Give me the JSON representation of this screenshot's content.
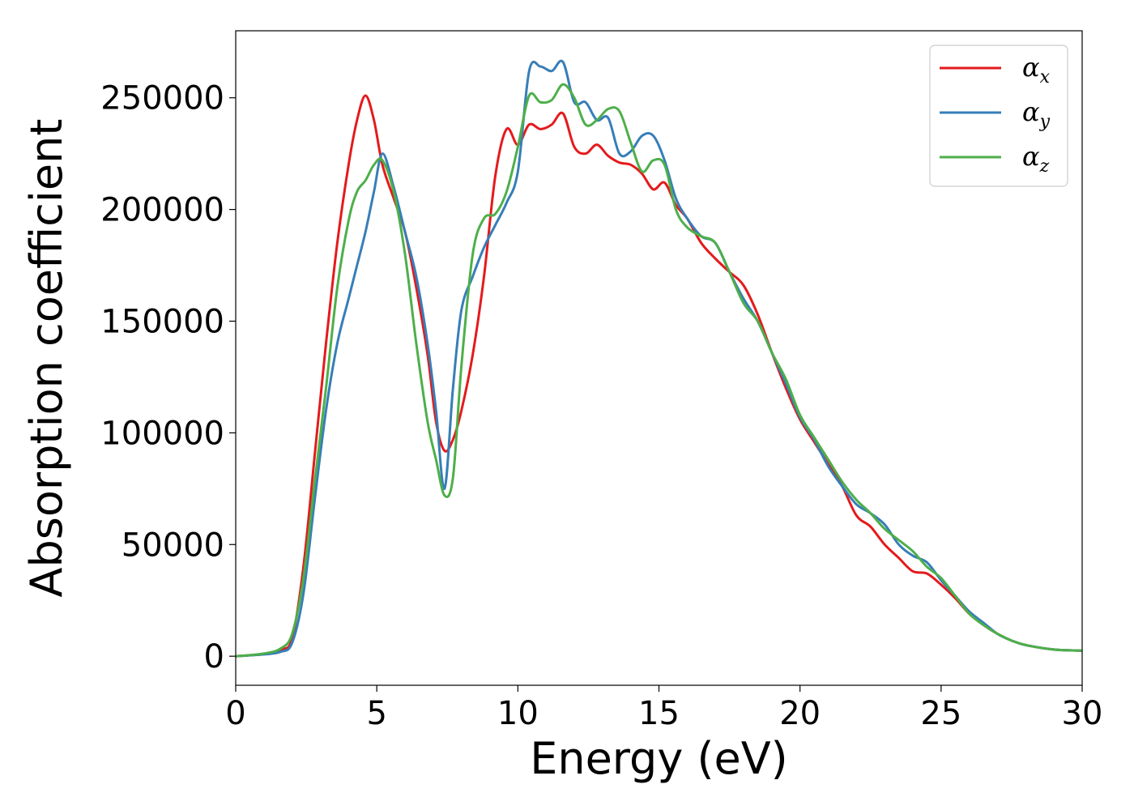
{
  "chart_data": {
    "type": "line",
    "xlabel": "Energy (eV)",
    "ylabel": "Absorption coefficient",
    "xlim": [
      0,
      30
    ],
    "ylim": [
      -13000,
      280000
    ],
    "xticks": [
      0,
      5,
      10,
      15,
      20,
      25,
      30
    ],
    "yticks": [
      0,
      50000,
      100000,
      150000,
      200000,
      250000
    ],
    "grid": false,
    "legend_position": "top-right",
    "series": [
      {
        "name": "α_x",
        "label_main": "α",
        "label_sub": "x",
        "color": "#e41a1c",
        "x": [
          0,
          1,
          1.6,
          2.0,
          2.4,
          2.8,
          3.2,
          3.6,
          4.0,
          4.3,
          4.6,
          4.9,
          5.2,
          5.6,
          6.0,
          6.4,
          6.8,
          7.1,
          7.4,
          7.7,
          8.0,
          8.4,
          8.8,
          9.2,
          9.6,
          10.0,
          10.4,
          10.8,
          11.2,
          11.6,
          12.0,
          12.4,
          12.8,
          13.2,
          13.6,
          14.0,
          14.4,
          14.8,
          15.2,
          15.6,
          16.0,
          16.5,
          17.0,
          17.5,
          18.0,
          18.5,
          19.0,
          19.5,
          20.0,
          20.5,
          21.0,
          21.5,
          22.0,
          22.5,
          23.0,
          23.5,
          24.0,
          24.5,
          25.0,
          25.5,
          26.0,
          26.5,
          27.0,
          27.5,
          28.0,
          29.0,
          30.0
        ],
        "y": [
          0,
          1000,
          3000,
          8000,
          40000,
          90000,
          140000,
          185000,
          220000,
          240000,
          251000,
          240000,
          220000,
          205000,
          190000,
          165000,
          135000,
          105000,
          92000,
          97000,
          110000,
          135000,
          170000,
          215000,
          236000,
          229000,
          238000,
          236000,
          238000,
          243000,
          228000,
          225000,
          229000,
          224000,
          221000,
          220000,
          216000,
          209000,
          212000,
          202000,
          196000,
          185000,
          178000,
          172000,
          166000,
          153000,
          136000,
          120000,
          106000,
          96000,
          86000,
          76000,
          63000,
          58000,
          50000,
          44000,
          38000,
          37000,
          32000,
          26000,
          19000,
          14000,
          10000,
          7000,
          5000,
          3000,
          2500
        ]
      },
      {
        "name": "α_y",
        "label_main": "α",
        "label_sub": "y",
        "color": "#377eb8",
        "x": [
          0,
          1,
          1.6,
          2.0,
          2.4,
          2.8,
          3.2,
          3.6,
          4.0,
          4.3,
          4.6,
          4.9,
          5.2,
          5.6,
          6.0,
          6.4,
          6.8,
          7.1,
          7.4,
          7.7,
          8.0,
          8.4,
          8.8,
          9.2,
          9.6,
          10.0,
          10.4,
          10.8,
          11.2,
          11.6,
          12.0,
          12.4,
          12.8,
          13.2,
          13.6,
          14.0,
          14.4,
          14.8,
          15.2,
          15.6,
          16.0,
          16.5,
          17.0,
          17.5,
          18.0,
          18.5,
          19.0,
          19.5,
          20.0,
          20.5,
          21.0,
          21.5,
          22.0,
          22.5,
          23.0,
          23.5,
          24.0,
          24.5,
          25.0,
          25.5,
          26.0,
          26.5,
          27.0,
          27.5,
          28.0,
          29.0,
          30.0
        ],
        "y": [
          0,
          800,
          2000,
          6000,
          28000,
          70000,
          110000,
          140000,
          160000,
          175000,
          190000,
          208000,
          225000,
          210000,
          190000,
          170000,
          140000,
          110000,
          75000,
          120000,
          155000,
          170000,
          183000,
          193000,
          203000,
          217000,
          262000,
          264000,
          262000,
          266000,
          248000,
          248000,
          240000,
          241000,
          225000,
          226000,
          233000,
          233000,
          222000,
          205000,
          196000,
          188000,
          185000,
          172000,
          160000,
          150000,
          136000,
          122000,
          107000,
          97000,
          85000,
          76000,
          68000,
          64000,
          59000,
          50000,
          45000,
          42000,
          34000,
          27000,
          20000,
          15000,
          10000,
          7000,
          5000,
          3000,
          2500
        ]
      },
      {
        "name": "α_z",
        "label_main": "α",
        "label_sub": "z",
        "color": "#4daf4a",
        "x": [
          0,
          1,
          1.6,
          2.0,
          2.4,
          2.8,
          3.2,
          3.6,
          4.0,
          4.3,
          4.6,
          4.9,
          5.2,
          5.6,
          6.0,
          6.4,
          6.8,
          7.1,
          7.4,
          7.7,
          8.0,
          8.4,
          8.8,
          9.2,
          9.6,
          10.0,
          10.4,
          10.8,
          11.2,
          11.6,
          12.0,
          12.4,
          12.8,
          13.2,
          13.6,
          14.0,
          14.4,
          14.8,
          15.2,
          15.6,
          16.0,
          16.5,
          17.0,
          17.5,
          18.0,
          18.5,
          19.0,
          19.5,
          20.0,
          20.5,
          21.0,
          21.5,
          22.0,
          22.5,
          23.0,
          23.5,
          24.0,
          24.5,
          25.0,
          25.5,
          26.0,
          26.5,
          27.0,
          27.5,
          28.0,
          29.0,
          30.0
        ],
        "y": [
          0,
          1200,
          3500,
          10000,
          35000,
          78000,
          120000,
          165000,
          195000,
          208000,
          213000,
          220000,
          222000,
          208000,
          180000,
          140000,
          105000,
          88000,
          72000,
          80000,
          130000,
          180000,
          196000,
          198000,
          208000,
          228000,
          251000,
          248000,
          249000,
          256000,
          250000,
          238000,
          240000,
          245000,
          244000,
          230000,
          217000,
          222000,
          220000,
          200000,
          192000,
          188000,
          185000,
          172000,
          158000,
          150000,
          136000,
          124000,
          108000,
          98000,
          88000,
          78000,
          70000,
          64000,
          57000,
          52000,
          47000,
          40000,
          35000,
          27000,
          19000,
          14000,
          10000,
          7000,
          5000,
          3000,
          2500
        ]
      }
    ]
  }
}
